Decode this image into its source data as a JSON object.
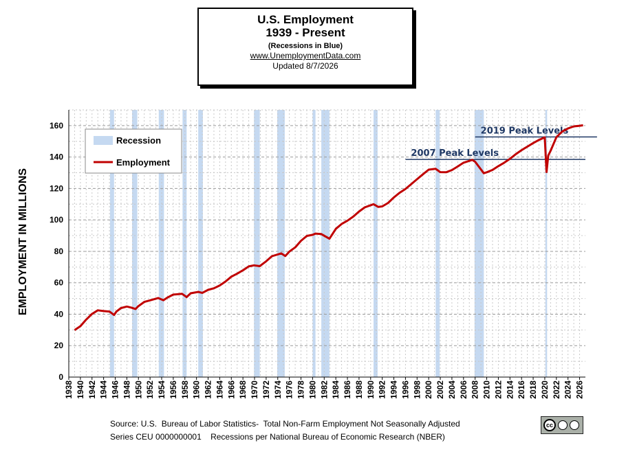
{
  "header": {
    "title": "U.S. Employment",
    "subtitle": "1939 - Present",
    "note": "(Recessions  in Blue)",
    "website": "www.UnemploymentData.com",
    "updated": "Updated  8/7/2026"
  },
  "chart_data": {
    "type": "line",
    "ylabel": "EMPLOYMENT IN MILLIONS",
    "xlim": [
      1938,
      2027
    ],
    "ylim": [
      0,
      170
    ],
    "yticks": [
      0,
      20,
      40,
      60,
      80,
      100,
      120,
      140,
      160
    ],
    "xticks": [
      "1938",
      "1940",
      "1942",
      "1944",
      "1946",
      "1948",
      "1950",
      "1952",
      "1954",
      "1956",
      "1958",
      "1960",
      "1962",
      "1964",
      "1966",
      "1968",
      "1970",
      "1972",
      "1974",
      "1976",
      "1978",
      "1980",
      "1982",
      "1984",
      "1986",
      "1988",
      "1990",
      "1992",
      "1994",
      "1996",
      "1998",
      "2000",
      "2002",
      "2004",
      "2006",
      "2008",
      "2010",
      "2012",
      "2014",
      "2016",
      "2018",
      "2020",
      "2022",
      "2024",
      "2026"
    ],
    "grid": true,
    "legend": {
      "placement": "top-left",
      "recession_label": "Recession",
      "employment_label": "Employment"
    },
    "recessions": [
      [
        1945.1,
        1945.8
      ],
      [
        1948.9,
        1949.8
      ],
      [
        1953.5,
        1954.4
      ],
      [
        1957.6,
        1958.3
      ],
      [
        1960.3,
        1961.1
      ],
      [
        1969.9,
        1970.9
      ],
      [
        1973.9,
        1975.2
      ],
      [
        1980.0,
        1980.5
      ],
      [
        1981.5,
        1982.9
      ],
      [
        1990.5,
        1991.2
      ],
      [
        2001.2,
        2001.9
      ],
      [
        2007.9,
        2009.5
      ],
      [
        2020.1,
        2020.4
      ]
    ],
    "series": [
      {
        "name": "Employment",
        "color": "#c00000",
        "x": [
          1939,
          1940,
          1941,
          1942,
          1943,
          1944,
          1945,
          1945.8,
          1946.2,
          1947,
          1948,
          1948.8,
          1949.5,
          1950,
          1951,
          1952,
          1953.4,
          1954.3,
          1955,
          1956,
          1957.5,
          1958.3,
          1959,
          1960.3,
          1961,
          1962,
          1963,
          1964,
          1965,
          1966,
          1967,
          1968,
          1969,
          1969.9,
          1970.9,
          1972,
          1973,
          1974.6,
          1975.3,
          1976,
          1977,
          1978,
          1979,
          1980,
          1980.5,
          1981.5,
          1982.9,
          1984,
          1985,
          1986,
          1987,
          1988,
          1989,
          1990.5,
          1991.3,
          1992,
          1993,
          1994,
          1995,
          1996,
          1997,
          1998,
          1999,
          2000,
          2001.2,
          2002,
          2003,
          2004,
          2005,
          2006,
          2007.5,
          2008,
          2009.5,
          2010,
          2011,
          2012,
          2013,
          2014,
          2015,
          2016,
          2017,
          2018,
          2019,
          2020,
          2020.3,
          2020.6,
          2021,
          2022,
          2023,
          2024,
          2025,
          2026,
          2026.6
        ],
        "values": [
          29.9,
          32.4,
          36.6,
          40.2,
          42.5,
          42.0,
          41.7,
          39.5,
          41.7,
          43.9,
          44.9,
          44.2,
          43.3,
          45.2,
          47.8,
          48.8,
          50.3,
          48.9,
          50.6,
          52.5,
          53.0,
          50.9,
          53.3,
          54.2,
          53.6,
          55.5,
          56.5,
          58.3,
          60.8,
          63.9,
          65.8,
          67.9,
          70.4,
          71.1,
          70.6,
          73.7,
          76.9,
          78.7,
          77.0,
          79.9,
          82.5,
          86.7,
          89.8,
          90.5,
          91.3,
          91.0,
          88.0,
          94.3,
          97.4,
          99.5,
          102.1,
          105.3,
          108.0,
          110.0,
          108.3,
          108.6,
          110.8,
          114.3,
          117.3,
          119.7,
          122.8,
          125.9,
          129.0,
          132.0,
          132.5,
          130.4,
          130.3,
          131.7,
          134.0,
          136.4,
          138.2,
          137.0,
          129.7,
          130.3,
          131.8,
          134.2,
          136.4,
          138.9,
          141.8,
          144.4,
          146.6,
          148.9,
          150.9,
          152.5,
          130.5,
          141.0,
          144.0,
          152.6,
          156.2,
          158.2,
          159.5,
          159.9,
          160.2
        ]
      }
    ],
    "reference_lines": [
      {
        "label": "2007 Peak Levels",
        "value": 138.5,
        "start": 1996,
        "end": 2027
      },
      {
        "label": "2019 Peak Levels",
        "value": 152.8,
        "start": 2008,
        "end": 2029
      }
    ],
    "colors": {
      "recession": "#c5d9f1",
      "line": "#c00000",
      "reference": "#1f3864",
      "grid": "#a6a6a6"
    }
  },
  "footer": {
    "source_line1": "Source: U.S.  Bureau of Labor Statistics-  Total Non-Farm Employment Not Seasonally Adjusted",
    "source_line2": "Series CEU 0000000001    Recessions per National Bureau of Economic Research (NBER)",
    "license_icon": "cc-by-sa-badge",
    "license_cc": "cc",
    "license_by": "BY",
    "license_sa": "SA"
  }
}
